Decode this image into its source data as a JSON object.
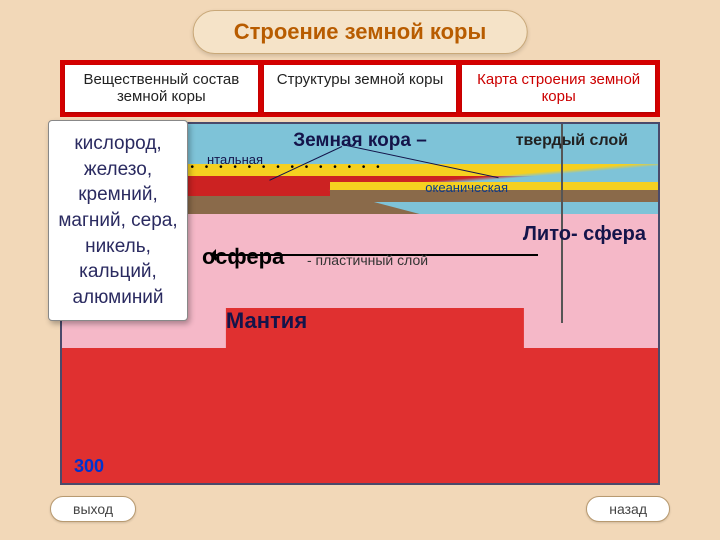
{
  "title": "Строение земной коры",
  "tabs": [
    {
      "label": "Вещественный состав земной коры"
    },
    {
      "label": "Структуры земной коры"
    },
    {
      "label": "Карта строения земной коры"
    }
  ],
  "info_panel": {
    "text": "кислород, железо, кремний, магний, сера, никель, кальций, алюминий"
  },
  "diagram": {
    "labels": {
      "crust": "Земная кора –",
      "hard_layer": "твердый слой",
      "continental": "нтальная",
      "oceanic": "океаническая",
      "asthenosphere": "осфера",
      "plastic_layer": "- пластичный слой",
      "lithosphere": "Лито-\nсфера",
      "mantle": "Мантия",
      "depth": "300"
    },
    "colors": {
      "background": "#f2d8b8",
      "sky": "#7ec3d8",
      "sediment": "#f5d020",
      "granite": "#c22222",
      "basalt": "#8a6a4a",
      "asthenosphere": "#f5b8c8",
      "mantle": "#e03030",
      "tab_border": "#d40000",
      "title_color": "#b85c00"
    }
  },
  "nav": {
    "exit": "выход",
    "back": "назад"
  }
}
